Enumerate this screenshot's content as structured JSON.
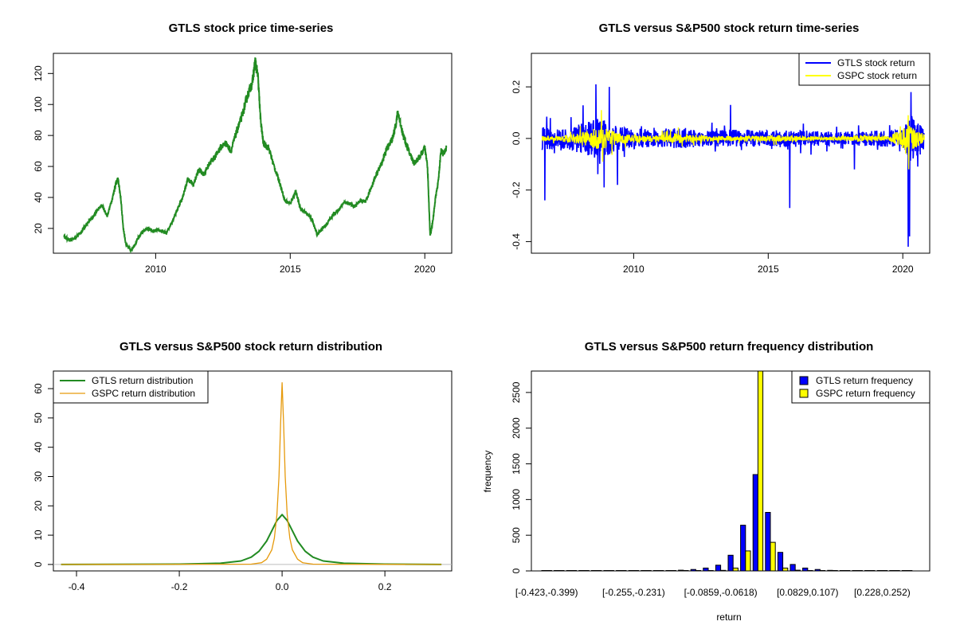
{
  "chart_data": [
    {
      "type": "line",
      "title": "GTLS stock price time-series",
      "xlabel": "",
      "ylabel": "",
      "xlim": [
        2006.2,
        2021.0
      ],
      "ylim": [
        4,
        133
      ],
      "xticks": [
        2010,
        2015,
        2020
      ],
      "yticks": [
        20,
        40,
        60,
        80,
        100,
        120
      ],
      "colors": {
        "line": "#228B22"
      },
      "series": [
        {
          "x": [
            2006.6,
            2006.8,
            2007.0,
            2007.2,
            2007.4,
            2007.6,
            2007.8,
            2008.0,
            2008.2,
            2008.4,
            2008.5,
            2008.6,
            2008.7,
            2008.8,
            2008.9,
            2009.1,
            2009.3,
            2009.5,
            2009.7,
            2009.9,
            2010.1,
            2010.4,
            2010.6,
            2010.8,
            2011.0,
            2011.2,
            2011.4,
            2011.6,
            2011.8,
            2012.0,
            2012.2,
            2012.4,
            2012.6,
            2012.8,
            2013.0,
            2013.2,
            2013.4,
            2013.6,
            2013.7,
            2013.8,
            2013.9,
            2014.0,
            2014.2,
            2014.4,
            2014.6,
            2014.8,
            2015.0,
            2015.2,
            2015.4,
            2015.6,
            2015.8,
            2016.0,
            2016.2,
            2016.4,
            2016.6,
            2016.8,
            2017.0,
            2017.2,
            2017.4,
            2017.6,
            2017.8,
            2018.0,
            2018.2,
            2018.4,
            2018.6,
            2018.8,
            2018.9,
            2019.0,
            2019.2,
            2019.4,
            2019.6,
            2019.8,
            2020.0,
            2020.1,
            2020.2,
            2020.3,
            2020.4,
            2020.5,
            2020.6,
            2020.7,
            2020.8
          ],
          "y": [
            15,
            12,
            14,
            17,
            22,
            26,
            31,
            35,
            28,
            40,
            48,
            52,
            40,
            20,
            9,
            6,
            12,
            18,
            20,
            18,
            19,
            17,
            24,
            32,
            40,
            52,
            48,
            58,
            55,
            62,
            66,
            72,
            75,
            70,
            82,
            92,
            105,
            115,
            128,
            118,
            90,
            75,
            72,
            60,
            50,
            38,
            36,
            44,
            32,
            30,
            26,
            16,
            20,
            24,
            29,
            32,
            37,
            36,
            34,
            38,
            37,
            46,
            55,
            62,
            72,
            78,
            85,
            95,
            80,
            70,
            62,
            66,
            72,
            60,
            15,
            25,
            40,
            50,
            70,
            68,
            72
          ]
        }
      ]
    },
    {
      "type": "line",
      "title": "GTLS versus S&P500 stock return time-series",
      "xlabel": "",
      "ylabel": "",
      "xlim": [
        2006.2,
        2021.0
      ],
      "ylim": [
        -0.445,
        0.33
      ],
      "xticks": [
        2010,
        2015,
        2020
      ],
      "yticks": [
        -0.4,
        -0.2,
        0.0,
        0.2
      ],
      "ytick_labels": [
        "-0.4",
        "-0.2",
        "0.0",
        "0.2"
      ],
      "legend_position": "top-right",
      "series": [
        {
          "name": "GTLS stock return",
          "color": "#0000FF",
          "volatility": [
            [
              2006.6,
              0.045
            ],
            [
              2007.5,
              0.04
            ],
            [
              2008.7,
              0.08
            ],
            [
              2009.5,
              0.045
            ],
            [
              2010.5,
              0.035
            ],
            [
              2011.5,
              0.04
            ],
            [
              2013.0,
              0.03
            ],
            [
              2014.0,
              0.035
            ],
            [
              2015.0,
              0.03
            ],
            [
              2016.0,
              0.035
            ],
            [
              2017.5,
              0.025
            ],
            [
              2019.0,
              0.03
            ],
            [
              2020.0,
              0.035
            ],
            [
              2020.3,
              0.09
            ],
            [
              2020.8,
              0.04
            ]
          ],
          "spikes": [
            [
              2006.7,
              -0.24
            ],
            [
              2008.6,
              0.21
            ],
            [
              2008.9,
              -0.19
            ],
            [
              2009.1,
              0.2
            ],
            [
              2009.4,
              -0.18
            ],
            [
              2015.8,
              -0.27
            ],
            [
              2020.2,
              -0.42
            ],
            [
              2020.25,
              -0.38
            ],
            [
              2020.3,
              0.18
            ],
            [
              2018.2,
              -0.12
            ],
            [
              2013.6,
              0.13
            ]
          ]
        },
        {
          "name": "GSPC stock return",
          "color": "#FFFF00",
          "volatility": [
            [
              2006.6,
              0.008
            ],
            [
              2007.5,
              0.012
            ],
            [
              2008.8,
              0.045
            ],
            [
              2009.5,
              0.02
            ],
            [
              2010.5,
              0.012
            ],
            [
              2011.7,
              0.02
            ],
            [
              2013.0,
              0.008
            ],
            [
              2015.6,
              0.012
            ],
            [
              2017.0,
              0.005
            ],
            [
              2018.5,
              0.012
            ],
            [
              2019.5,
              0.008
            ],
            [
              2020.2,
              0.06
            ],
            [
              2020.8,
              0.015
            ]
          ],
          "spikes": [
            [
              2008.8,
              0.11
            ],
            [
              2008.85,
              -0.09
            ],
            [
              2020.2,
              0.09
            ],
            [
              2020.22,
              -0.12
            ]
          ]
        }
      ]
    },
    {
      "type": "line",
      "title": "GTLS versus S&P500 stock return distribution",
      "xlabel": "",
      "ylabel": "",
      "xlim": [
        -0.445,
        0.33
      ],
      "ylim": [
        -2.2,
        66
      ],
      "xticks": [
        -0.4,
        -0.2,
        0.0,
        0.2
      ],
      "xtick_labels": [
        "-0.4",
        "-0.2",
        "0.0",
        "0.2"
      ],
      "yticks": [
        0,
        10,
        20,
        30,
        40,
        50,
        60
      ],
      "legend_position": "top-left",
      "series": [
        {
          "name": "GTLS return distribution",
          "color": "#228B22",
          "x": [
            -0.43,
            -0.2,
            -0.12,
            -0.08,
            -0.06,
            -0.045,
            -0.03,
            -0.02,
            -0.01,
            0.0,
            0.01,
            0.02,
            0.03,
            0.045,
            0.06,
            0.08,
            0.12,
            0.2,
            0.31
          ],
          "y": [
            0,
            0.1,
            0.4,
            1.2,
            2.5,
            4.5,
            8,
            11.5,
            15,
            17,
            15,
            11.5,
            8,
            4.5,
            2.5,
            1.2,
            0.4,
            0.1,
            0
          ]
        },
        {
          "name": "GSPC return distribution",
          "color": "#E69A0C",
          "x": [
            -0.43,
            -0.06,
            -0.04,
            -0.03,
            -0.02,
            -0.015,
            -0.01,
            -0.006,
            -0.003,
            0.0,
            0.003,
            0.006,
            0.01,
            0.015,
            0.02,
            0.03,
            0.04,
            0.06,
            0.31
          ],
          "y": [
            0,
            0.1,
            0.6,
            1.8,
            5,
            9,
            17,
            30,
            48,
            62,
            48,
            30,
            17,
            9,
            5,
            1.8,
            0.6,
            0.1,
            0
          ]
        }
      ]
    },
    {
      "type": "bar",
      "title": "GTLS versus S&P500 return frequency distribution",
      "xlabel": "return",
      "ylabel": "frequency",
      "ylim": [
        0,
        2800
      ],
      "yticks": [
        0,
        500,
        1000,
        1500,
        2000,
        2500
      ],
      "tick_labels": [
        "[-0.423,-0.399)",
        "[-0.255,-0.231)",
        "[-0.0859,-0.0618)",
        "[0.0829,0.107)",
        "[0.228,0.252)"
      ],
      "tick_label_positions": [
        0,
        7,
        14,
        21,
        27
      ],
      "legend_position": "top-right",
      "series": [
        {
          "name": "GTLS return frequency",
          "color": "#0000FF",
          "values": [
            1,
            0,
            0,
            0,
            0,
            0,
            1,
            1,
            2,
            3,
            5,
            10,
            20,
            40,
            80,
            220,
            640,
            1350,
            820,
            260,
            90,
            40,
            20,
            8,
            4,
            2,
            1,
            1,
            0,
            0
          ]
        },
        {
          "name": "GSPC return frequency",
          "color": "#FFFF00",
          "values": [
            0,
            0,
            0,
            0,
            0,
            0,
            0,
            0,
            0,
            0,
            0,
            0,
            1,
            3,
            8,
            40,
            280,
            2800,
            400,
            40,
            10,
            3,
            1,
            0,
            0,
            0,
            0,
            0,
            0,
            0
          ]
        }
      ]
    }
  ]
}
